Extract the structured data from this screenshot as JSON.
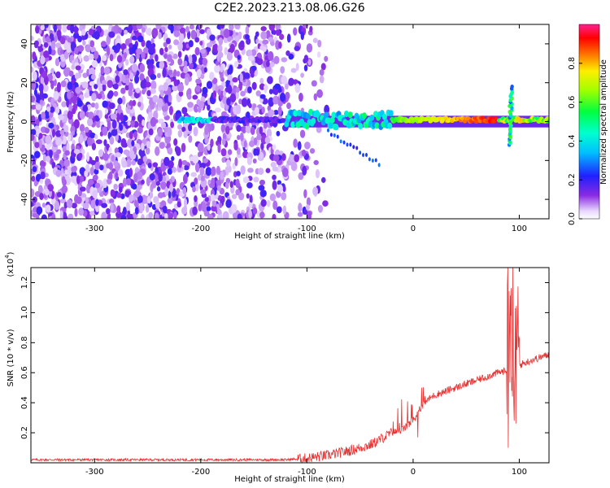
{
  "title": "C2E2.2023.213.08.06.G26",
  "colors": {
    "snr_line": "#e83232",
    "axis": "#000000"
  },
  "chart_data": [
    {
      "type": "heatmap",
      "xlabel": "Height of straight line (km)",
      "ylabel": "Frequency (Hz)",
      "xlim": [
        -360,
        128
      ],
      "ylim": [
        -50,
        50
      ],
      "xticks": [
        -300,
        -200,
        -100,
        0,
        100
      ],
      "yticks": [
        -40,
        -20,
        0,
        20,
        40
      ],
      "colorbar": {
        "label": "Normalized spectral amplitude",
        "range": [
          0.0,
          1.0
        ],
        "ticks": [
          0.0,
          0.2,
          0.4,
          0.6,
          0.8
        ]
      },
      "features": [
        {
          "name": "noise",
          "x_range": [
            -360,
            -100
          ],
          "freq_range": [
            -50,
            50
          ],
          "amplitude": 0.15
        },
        {
          "name": "signal_ridge",
          "x_range": [
            -220,
            128
          ],
          "freq": 1,
          "amplitude_max": 0.95
        },
        {
          "name": "burst",
          "x": 92,
          "freq_range": [
            -12,
            18
          ],
          "amplitude": 0.5
        }
      ]
    },
    {
      "type": "line",
      "xlabel": "Height of straight line (km)",
      "ylabel": "SNR (10 * v/v)",
      "yscale_label": "(x10",
      "yscale_exp": "4",
      "y_multiplier": 10000,
      "xlim": [
        -360,
        128
      ],
      "ylim": [
        0,
        1.3
      ],
      "xticks": [
        -300,
        -200,
        -100,
        0,
        100
      ],
      "yticks": [
        0.2,
        0.4,
        0.6,
        0.8,
        1.0,
        1.2
      ],
      "ytick_labels": [
        "0.2",
        "0.4",
        "0.6",
        "0.8",
        "1.0",
        "1.2"
      ],
      "series": [
        {
          "x": [
            -360,
            -300,
            -200,
            -150,
            -120,
            -100,
            -80,
            -60,
            -40,
            -20,
            -10,
            0,
            10,
            20,
            40,
            60,
            80,
            90,
            100,
            110,
            128
          ],
          "values": [
            0.02,
            0.02,
            0.02,
            0.02,
            0.02,
            0.03,
            0.05,
            0.08,
            0.12,
            0.2,
            0.22,
            0.28,
            0.4,
            0.45,
            0.5,
            0.55,
            0.6,
            0.62,
            0.65,
            0.68,
            0.72
          ]
        }
      ]
    }
  ]
}
